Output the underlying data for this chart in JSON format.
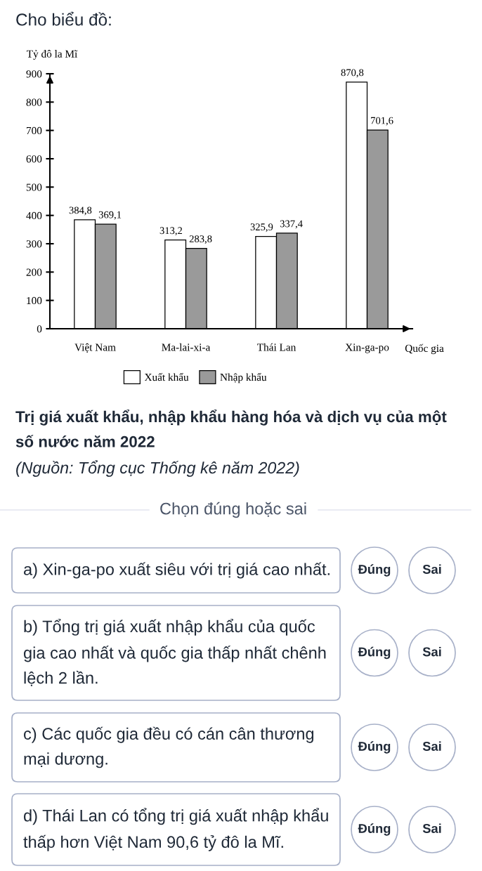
{
  "chart_data": {
    "type": "bar",
    "title": "Trị giá xuất khẩu, nhập khẩu hàng hóa và dịch vụ của một số nước năm 2022",
    "xlabel": "Quốc gia",
    "ylabel": "Tỷ đô la Mĩ",
    "categories": [
      "Việt Nam",
      "Ma-lai-xi-a",
      "Thái Lan",
      "Xin-ga-po"
    ],
    "series": [
      {
        "name": "Xuất khẩu",
        "color": "#ffffff",
        "values": [
          384.8,
          313.2,
          325.9,
          870.8
        ],
        "value_labels": [
          "384,8",
          "313,2",
          "325,9",
          "870,8"
        ]
      },
      {
        "name": "Nhập khẩu",
        "color": "#9a9a9a",
        "values": [
          369.1,
          283.8,
          337.4,
          701.6
        ],
        "value_labels": [
          "369,1",
          "283,8",
          "337,4",
          "701,6"
        ]
      }
    ],
    "ylim": [
      0,
      900
    ],
    "yticks": [
      0,
      100,
      200,
      300,
      400,
      500,
      600,
      700,
      800,
      900
    ],
    "legend": "bottom",
    "annotations": [
      "Cho biểu đồ:",
      "(Nguồn: Tổng cục Thống kê năm 2022)",
      "Chọn đúng hoặc sai",
      "a) Xin-ga-po xuất siêu với trị giá cao nhất.",
      "Đúng",
      "Sai",
      "b) Tổng trị giá xuất nhập khẩu của quốc gia cao nhất và quốc gia thấp nhất chênh lệch 2 lần.",
      "Đúng",
      "Sai",
      "c) Các quốc gia đều có cán cân thương mại dương.",
      "Đúng",
      "Sai",
      "d) Thái Lan có tổng trị giá xuất nhập khẩu thấp hơn Việt Nam 90,6 tỷ đô la Mĩ.",
      "Đúng",
      "Sai"
    ]
  }
}
